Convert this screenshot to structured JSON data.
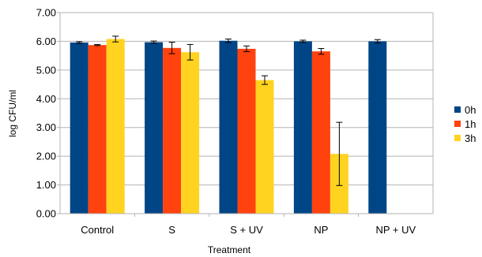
{
  "chart_data": {
    "type": "bar",
    "title": "",
    "xlabel": "Treatment",
    "ylabel": "log CFU/ml",
    "categories": [
      "Control",
      "S",
      "S + UV",
      "NP",
      "NP + UV"
    ],
    "ylim": [
      0,
      7
    ],
    "yticks": [
      "0.00",
      "1.00",
      "2.00",
      "3.00",
      "4.00",
      "5.00",
      "6.00",
      "7.00"
    ],
    "grid": true,
    "legend_position": "right",
    "series": [
      {
        "name": "0h",
        "color": "#004586",
        "values": [
          5.96,
          5.97,
          6.02,
          6.0,
          6.0
        ],
        "errors": [
          0.03,
          0.04,
          0.06,
          0.04,
          0.06
        ]
      },
      {
        "name": "1h",
        "color": "#ff420e",
        "values": [
          5.87,
          5.77,
          5.74,
          5.65,
          0.0
        ],
        "errors": [
          0.02,
          0.2,
          0.1,
          0.1,
          0.0
        ]
      },
      {
        "name": "3h",
        "color": "#ffd320",
        "values": [
          6.08,
          5.62,
          4.65,
          2.08,
          0.0
        ],
        "errors": [
          0.1,
          0.27,
          0.15,
          1.1,
          0.0
        ]
      }
    ]
  }
}
